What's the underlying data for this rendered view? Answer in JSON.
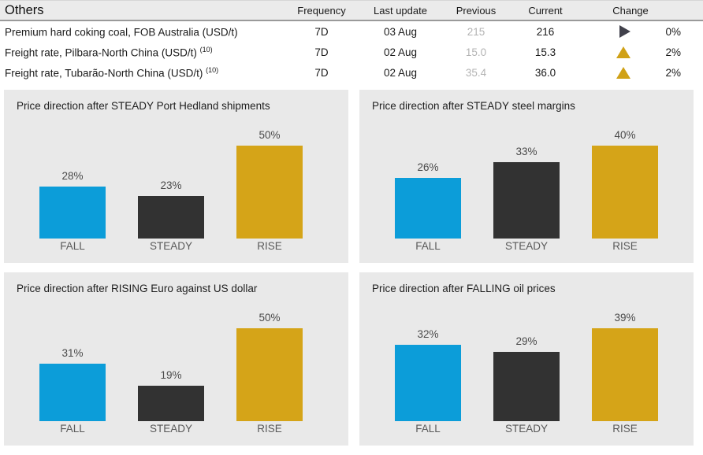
{
  "table": {
    "title": "Others",
    "columns": [
      "Frequency",
      "Last update",
      "Previous",
      "Current",
      "Change"
    ],
    "rows": [
      {
        "label": "Premium hard coking coal, FOB Australia (USD/t)",
        "footnote": "",
        "frequency": "7D",
        "last_update": "03 Aug",
        "previous": "215",
        "current": "216",
        "change": "0%",
        "change_direction": "steady"
      },
      {
        "label": "Freight rate, Pilbara-North China (USD/t)",
        "footnote": "(10)",
        "frequency": "7D",
        "last_update": "02 Aug",
        "previous": "15.0",
        "current": "15.3",
        "change": "2%",
        "change_direction": "up"
      },
      {
        "label": "Freight rate, Tubarão-North China (USD/t)",
        "footnote": "(10)",
        "frequency": "7D",
        "last_update": "02 Aug",
        "previous": "35.4",
        "current": "36.0",
        "change": "2%",
        "change_direction": "up"
      }
    ]
  },
  "chart_data": [
    {
      "type": "bar",
      "title": "Price direction after STEADY Port Hedland shipments",
      "categories": [
        "FALL",
        "STEADY",
        "RISE"
      ],
      "values": [
        28,
        23,
        50
      ],
      "data_labels": [
        "28%",
        "23%",
        "50%"
      ],
      "unit": "%",
      "grid": false,
      "legend": "none"
    },
    {
      "type": "bar",
      "title": "Price direction after STEADY steel margins",
      "categories": [
        "FALL",
        "STEADY",
        "RISE"
      ],
      "values": [
        26,
        33,
        40
      ],
      "data_labels": [
        "26%",
        "33%",
        "40%"
      ],
      "unit": "%",
      "grid": false,
      "legend": "none"
    },
    {
      "type": "bar",
      "title": "Price direction after RISING Euro against US dollar",
      "categories": [
        "FALL",
        "STEADY",
        "RISE"
      ],
      "values": [
        31,
        19,
        50
      ],
      "data_labels": [
        "31%",
        "19%",
        "50%"
      ],
      "unit": "%",
      "grid": false,
      "legend": "none"
    },
    {
      "type": "bar",
      "title": "Price direction after FALLING oil prices",
      "categories": [
        "FALL",
        "STEADY",
        "RISE"
      ],
      "values": [
        32,
        29,
        39
      ],
      "data_labels": [
        "32%",
        "29%",
        "39%"
      ],
      "unit": "%",
      "grid": false,
      "legend": "none"
    }
  ],
  "colors": {
    "bar_fall": "#0c9dd9",
    "bar_steady": "#323232",
    "bar_rise": "#d5a418",
    "change_up": "#d0a117",
    "change_steady": "#41414b",
    "panel_bg": "#e9e9e9",
    "header_bg": "#ebebeb",
    "previous_text": "#b3b3b3"
  }
}
